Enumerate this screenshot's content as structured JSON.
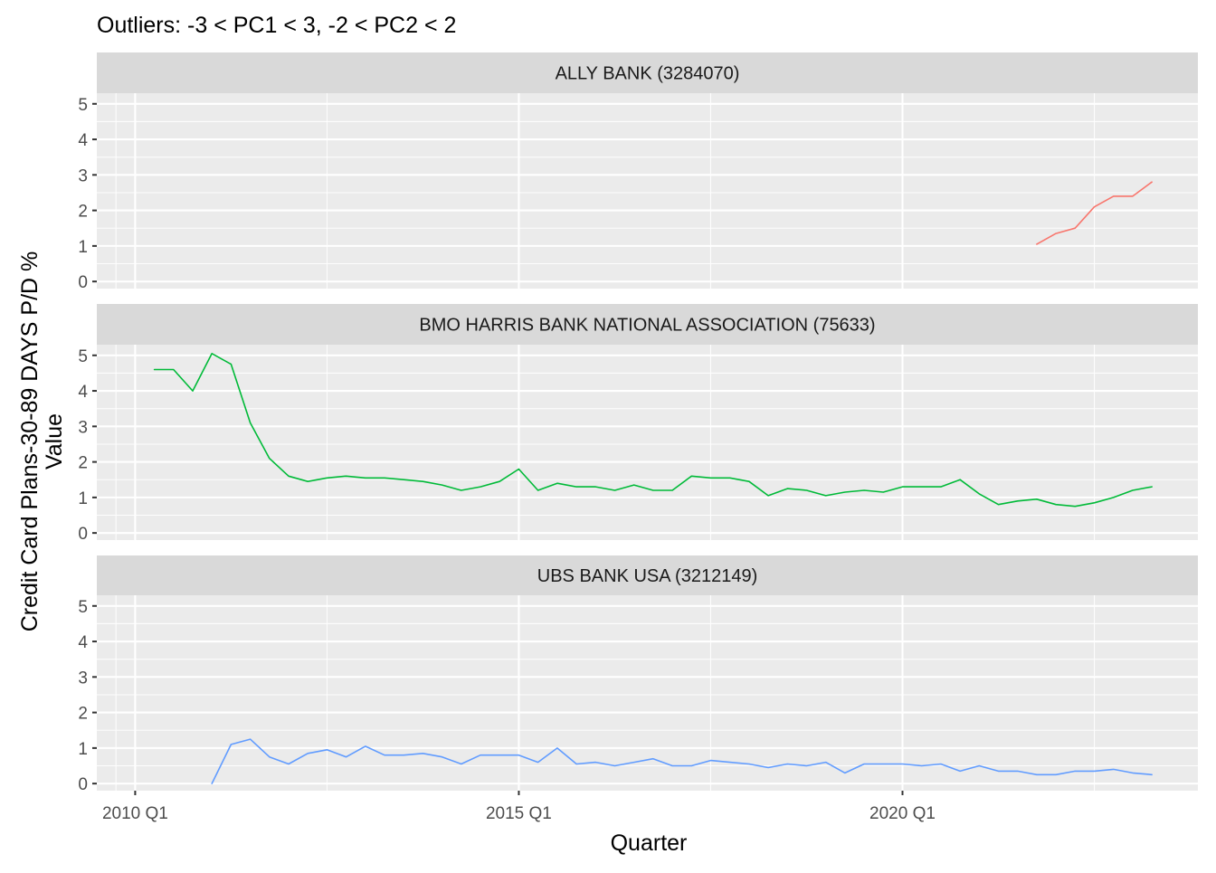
{
  "chart_data": {
    "type": "line",
    "title": "Outliers: -3 < PC1 < 3, -2 < PC2 < 2",
    "xlabel": "Quarter",
    "ylabel_lines": [
      "Credit Card Plans-30-89 DAYS P/D %",
      "Value"
    ],
    "x_ticks": [
      "2010 Q1",
      "2015 Q1",
      "2020 Q1"
    ],
    "x_tick_values": [
      2010.0,
      2015.0,
      2020.0
    ],
    "xlim": [
      2009.5,
      2023.85
    ],
    "y_ticks": [
      "0",
      "1",
      "2",
      "3",
      "4",
      "5"
    ],
    "y_tick_values": [
      0,
      1,
      2,
      3,
      4,
      5
    ],
    "ylim": [
      -0.2,
      5.3
    ],
    "grid": true,
    "legend": "none",
    "facets": [
      {
        "label": "ALLY BANK (3284070)",
        "color": "#F8766D",
        "x": [
          2021.75,
          2022.0,
          2022.25,
          2022.5,
          2022.75,
          2023.0,
          2023.25
        ],
        "values": [
          1.05,
          1.35,
          1.5,
          2.1,
          2.4,
          2.4,
          2.8
        ]
      },
      {
        "label": "BMO HARRIS BANK NATIONAL ASSOCIATION (75633)",
        "color": "#00BA38",
        "x": [
          2010.25,
          2010.5,
          2010.75,
          2011.0,
          2011.25,
          2011.5,
          2011.75,
          2012.0,
          2012.25,
          2012.5,
          2012.75,
          2013.0,
          2013.25,
          2013.5,
          2013.75,
          2014.0,
          2014.25,
          2014.5,
          2014.75,
          2015.0,
          2015.25,
          2015.5,
          2015.75,
          2016.0,
          2016.25,
          2016.5,
          2016.75,
          2017.0,
          2017.25,
          2017.5,
          2017.75,
          2018.0,
          2018.25,
          2018.5,
          2018.75,
          2019.0,
          2019.25,
          2019.5,
          2019.75,
          2020.0,
          2020.25,
          2020.5,
          2020.75,
          2021.0,
          2021.25,
          2021.5,
          2021.75,
          2022.0,
          2022.25,
          2022.5,
          2022.75,
          2023.0,
          2023.25
        ],
        "values": [
          4.6,
          4.6,
          4.0,
          5.05,
          4.75,
          3.1,
          2.1,
          1.6,
          1.45,
          1.55,
          1.6,
          1.55,
          1.55,
          1.5,
          1.45,
          1.35,
          1.2,
          1.3,
          1.45,
          1.8,
          1.2,
          1.4,
          1.3,
          1.3,
          1.2,
          1.35,
          1.2,
          1.2,
          1.6,
          1.55,
          1.55,
          1.45,
          1.05,
          1.25,
          1.2,
          1.05,
          1.15,
          1.2,
          1.15,
          1.3,
          1.3,
          1.3,
          1.5,
          1.1,
          0.8,
          0.9,
          0.95,
          0.8,
          0.75,
          0.85,
          1.0,
          1.2,
          1.3
        ]
      },
      {
        "label": "UBS BANK USA (3212149)",
        "color": "#619CFF",
        "x": [
          2011.0,
          2011.25,
          2011.5,
          2011.75,
          2012.0,
          2012.25,
          2012.5,
          2012.75,
          2013.0,
          2013.25,
          2013.5,
          2013.75,
          2014.0,
          2014.25,
          2014.5,
          2014.75,
          2015.0,
          2015.25,
          2015.5,
          2015.75,
          2016.0,
          2016.25,
          2016.5,
          2016.75,
          2017.0,
          2017.25,
          2017.5,
          2017.75,
          2018.0,
          2018.25,
          2018.5,
          2018.75,
          2019.0,
          2019.25,
          2019.5,
          2019.75,
          2020.0,
          2020.25,
          2020.5,
          2020.75,
          2021.0,
          2021.25,
          2021.5,
          2021.75,
          2022.0,
          2022.25,
          2022.5,
          2022.75,
          2023.0,
          2023.25
        ],
        "values": [
          0.0,
          1.1,
          1.25,
          0.75,
          0.55,
          0.85,
          0.95,
          0.75,
          1.05,
          0.8,
          0.8,
          0.85,
          0.75,
          0.55,
          0.8,
          0.8,
          0.8,
          0.6,
          1.0,
          0.55,
          0.6,
          0.5,
          0.6,
          0.7,
          0.5,
          0.5,
          0.65,
          0.6,
          0.55,
          0.45,
          0.55,
          0.5,
          0.6,
          0.3,
          0.55,
          0.55,
          0.55,
          0.5,
          0.55,
          0.35,
          0.5,
          0.35,
          0.35,
          0.25,
          0.25,
          0.35,
          0.35,
          0.4,
          0.3,
          0.25
        ]
      }
    ]
  }
}
